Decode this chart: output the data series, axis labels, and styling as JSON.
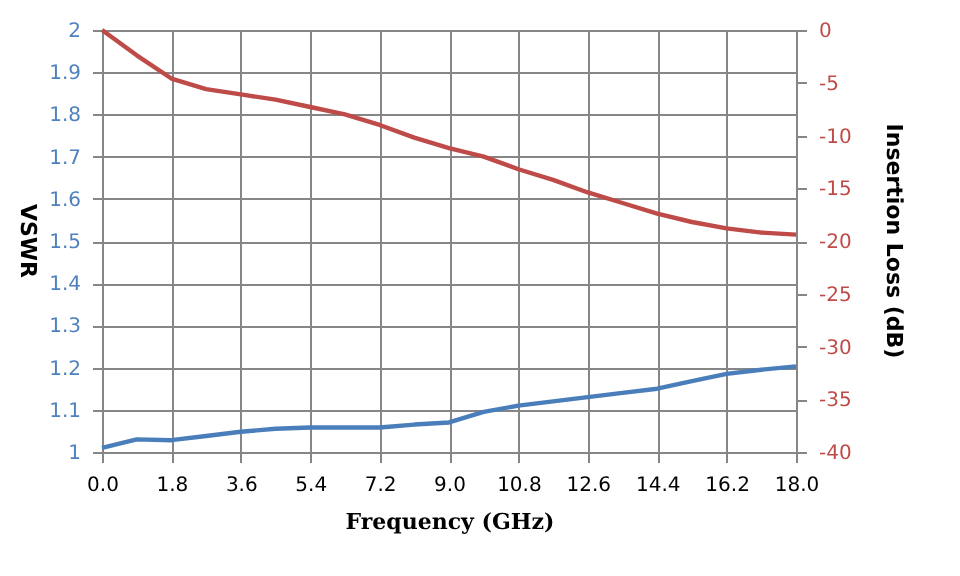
{
  "chart_data": {
    "type": "line",
    "xlabel": "Frequency (GHz)",
    "ylabel": "VSWR",
    "y2label": "Insertion Loss (dB)",
    "x": [
      0,
      0.9,
      1.8,
      2.7,
      3.6,
      4.5,
      5.4,
      6.3,
      7.2,
      8.1,
      9.0,
      9.9,
      10.8,
      11.7,
      12.6,
      13.5,
      14.4,
      15.3,
      16.2,
      17.1,
      18.0
    ],
    "series": [
      {
        "color": "#4a7ebb",
        "values": [
          1.01,
          1.03,
          1.028,
          1.038,
          1.048,
          1.055,
          1.058,
          1.058,
          1.058,
          1.065,
          1.07,
          1.095,
          1.11,
          1.12,
          1.13,
          1.14,
          1.15,
          1.168,
          1.185,
          1.195,
          1.203
        ]
      },
      {
        "color": "#be4b48",
        "axis": "y2",
        "values": [
          0,
          -2.4,
          -4.6,
          -5.6,
          -6.1,
          -6.6,
          -7.3,
          -8,
          -9,
          -10.2,
          -11.2,
          -12,
          -13.2,
          -14.2,
          -15.4,
          -16.4,
          -17.4,
          -18.2,
          -18.8,
          -19.2,
          -19.4
        ]
      }
    ],
    "xlim": [
      0,
      18
    ],
    "xticks": [
      {
        "value": 0,
        "label": "0.0"
      },
      1.8,
      3.6,
      5.4,
      7.2,
      {
        "value": 9,
        "label": "9.0"
      },
      10.8,
      12.6,
      14.4,
      16.2,
      {
        "value": 18,
        "label": "18.0"
      }
    ],
    "ylim": [
      1,
      2
    ],
    "yticks": [
      1,
      1.1,
      1.2,
      1.3,
      1.4,
      1.5,
      1.6,
      1.7,
      1.8,
      1.9,
      2
    ],
    "y2lim": [
      -40,
      0
    ],
    "y2ticks": [
      -40,
      -35,
      -30,
      -25,
      -20,
      -15,
      -10,
      -5,
      0
    ],
    "grid": true,
    "marker": "none",
    "line_style": "solid"
  }
}
